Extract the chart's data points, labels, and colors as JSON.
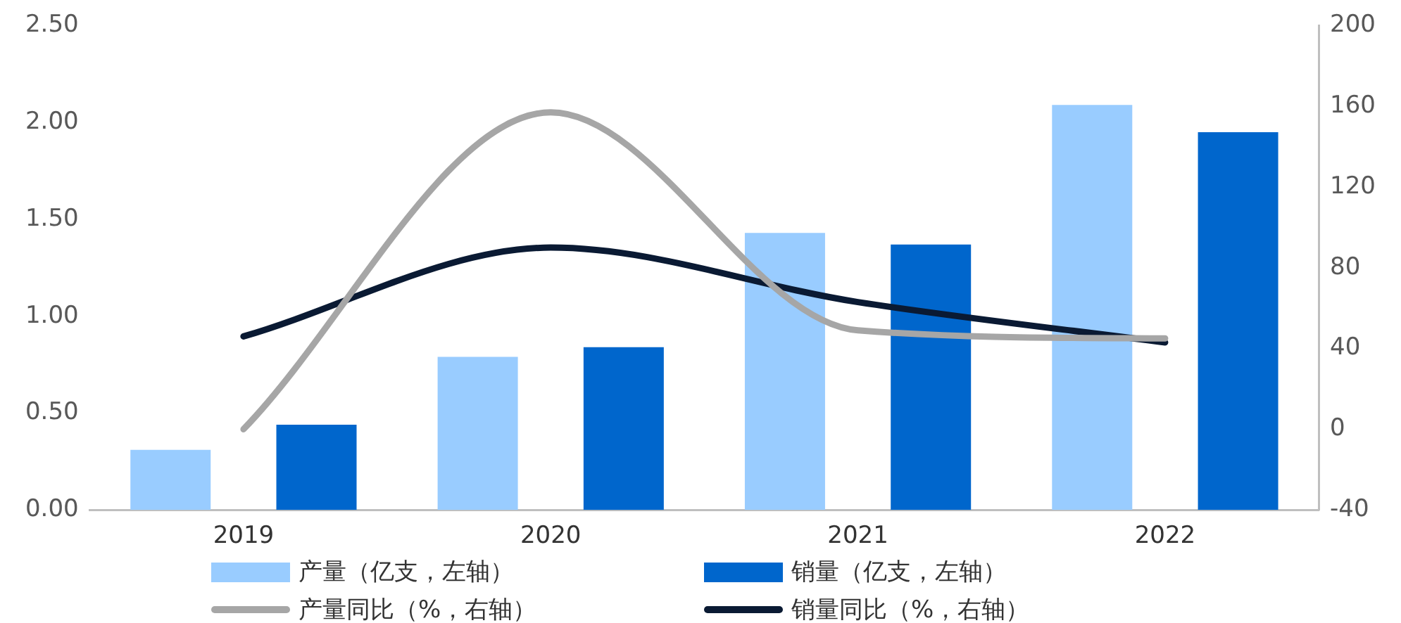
{
  "chart_data": {
    "type": "bar",
    "categories": [
      "2019",
      "2020",
      "2021",
      "2022"
    ],
    "series": [
      {
        "name": "产量（亿支，左轴）",
        "color": "#99ccff",
        "values": [
          0.31,
          0.79,
          1.43,
          2.09
        ]
      },
      {
        "name": "销量（亿支，左轴）",
        "color": "#0066cc",
        "values": [
          0.44,
          0.84,
          1.37,
          1.95
        ]
      },
      {
        "name": "产量同比（%，右轴）",
        "color": "#a6a6a6",
        "type": "line",
        "axis": "y2",
        "values": [
          0,
          157,
          49,
          45
        ]
      },
      {
        "name": "销量同比（%，右轴）",
        "color": "#0a1a33",
        "type": "line",
        "axis": "y2",
        "values": [
          46,
          90,
          63,
          43
        ]
      }
    ],
    "ylim": [
      0,
      2.5
    ],
    "yticks": [
      {
        "value": 0,
        "label": "0.00"
      },
      {
        "value": 0.5,
        "label": "0.50"
      },
      {
        "value": 1,
        "label": "1.00"
      },
      {
        "value": 1.5,
        "label": "1.50"
      },
      {
        "value": 2,
        "label": "2.00"
      },
      {
        "value": 2.5,
        "label": "2.50"
      }
    ],
    "y2lim": [
      -40,
      200
    ],
    "y2ticks": [
      -40,
      0,
      40,
      80,
      120,
      160,
      200
    ],
    "legend": "bottom",
    "grid": false,
    "marker": "none"
  }
}
